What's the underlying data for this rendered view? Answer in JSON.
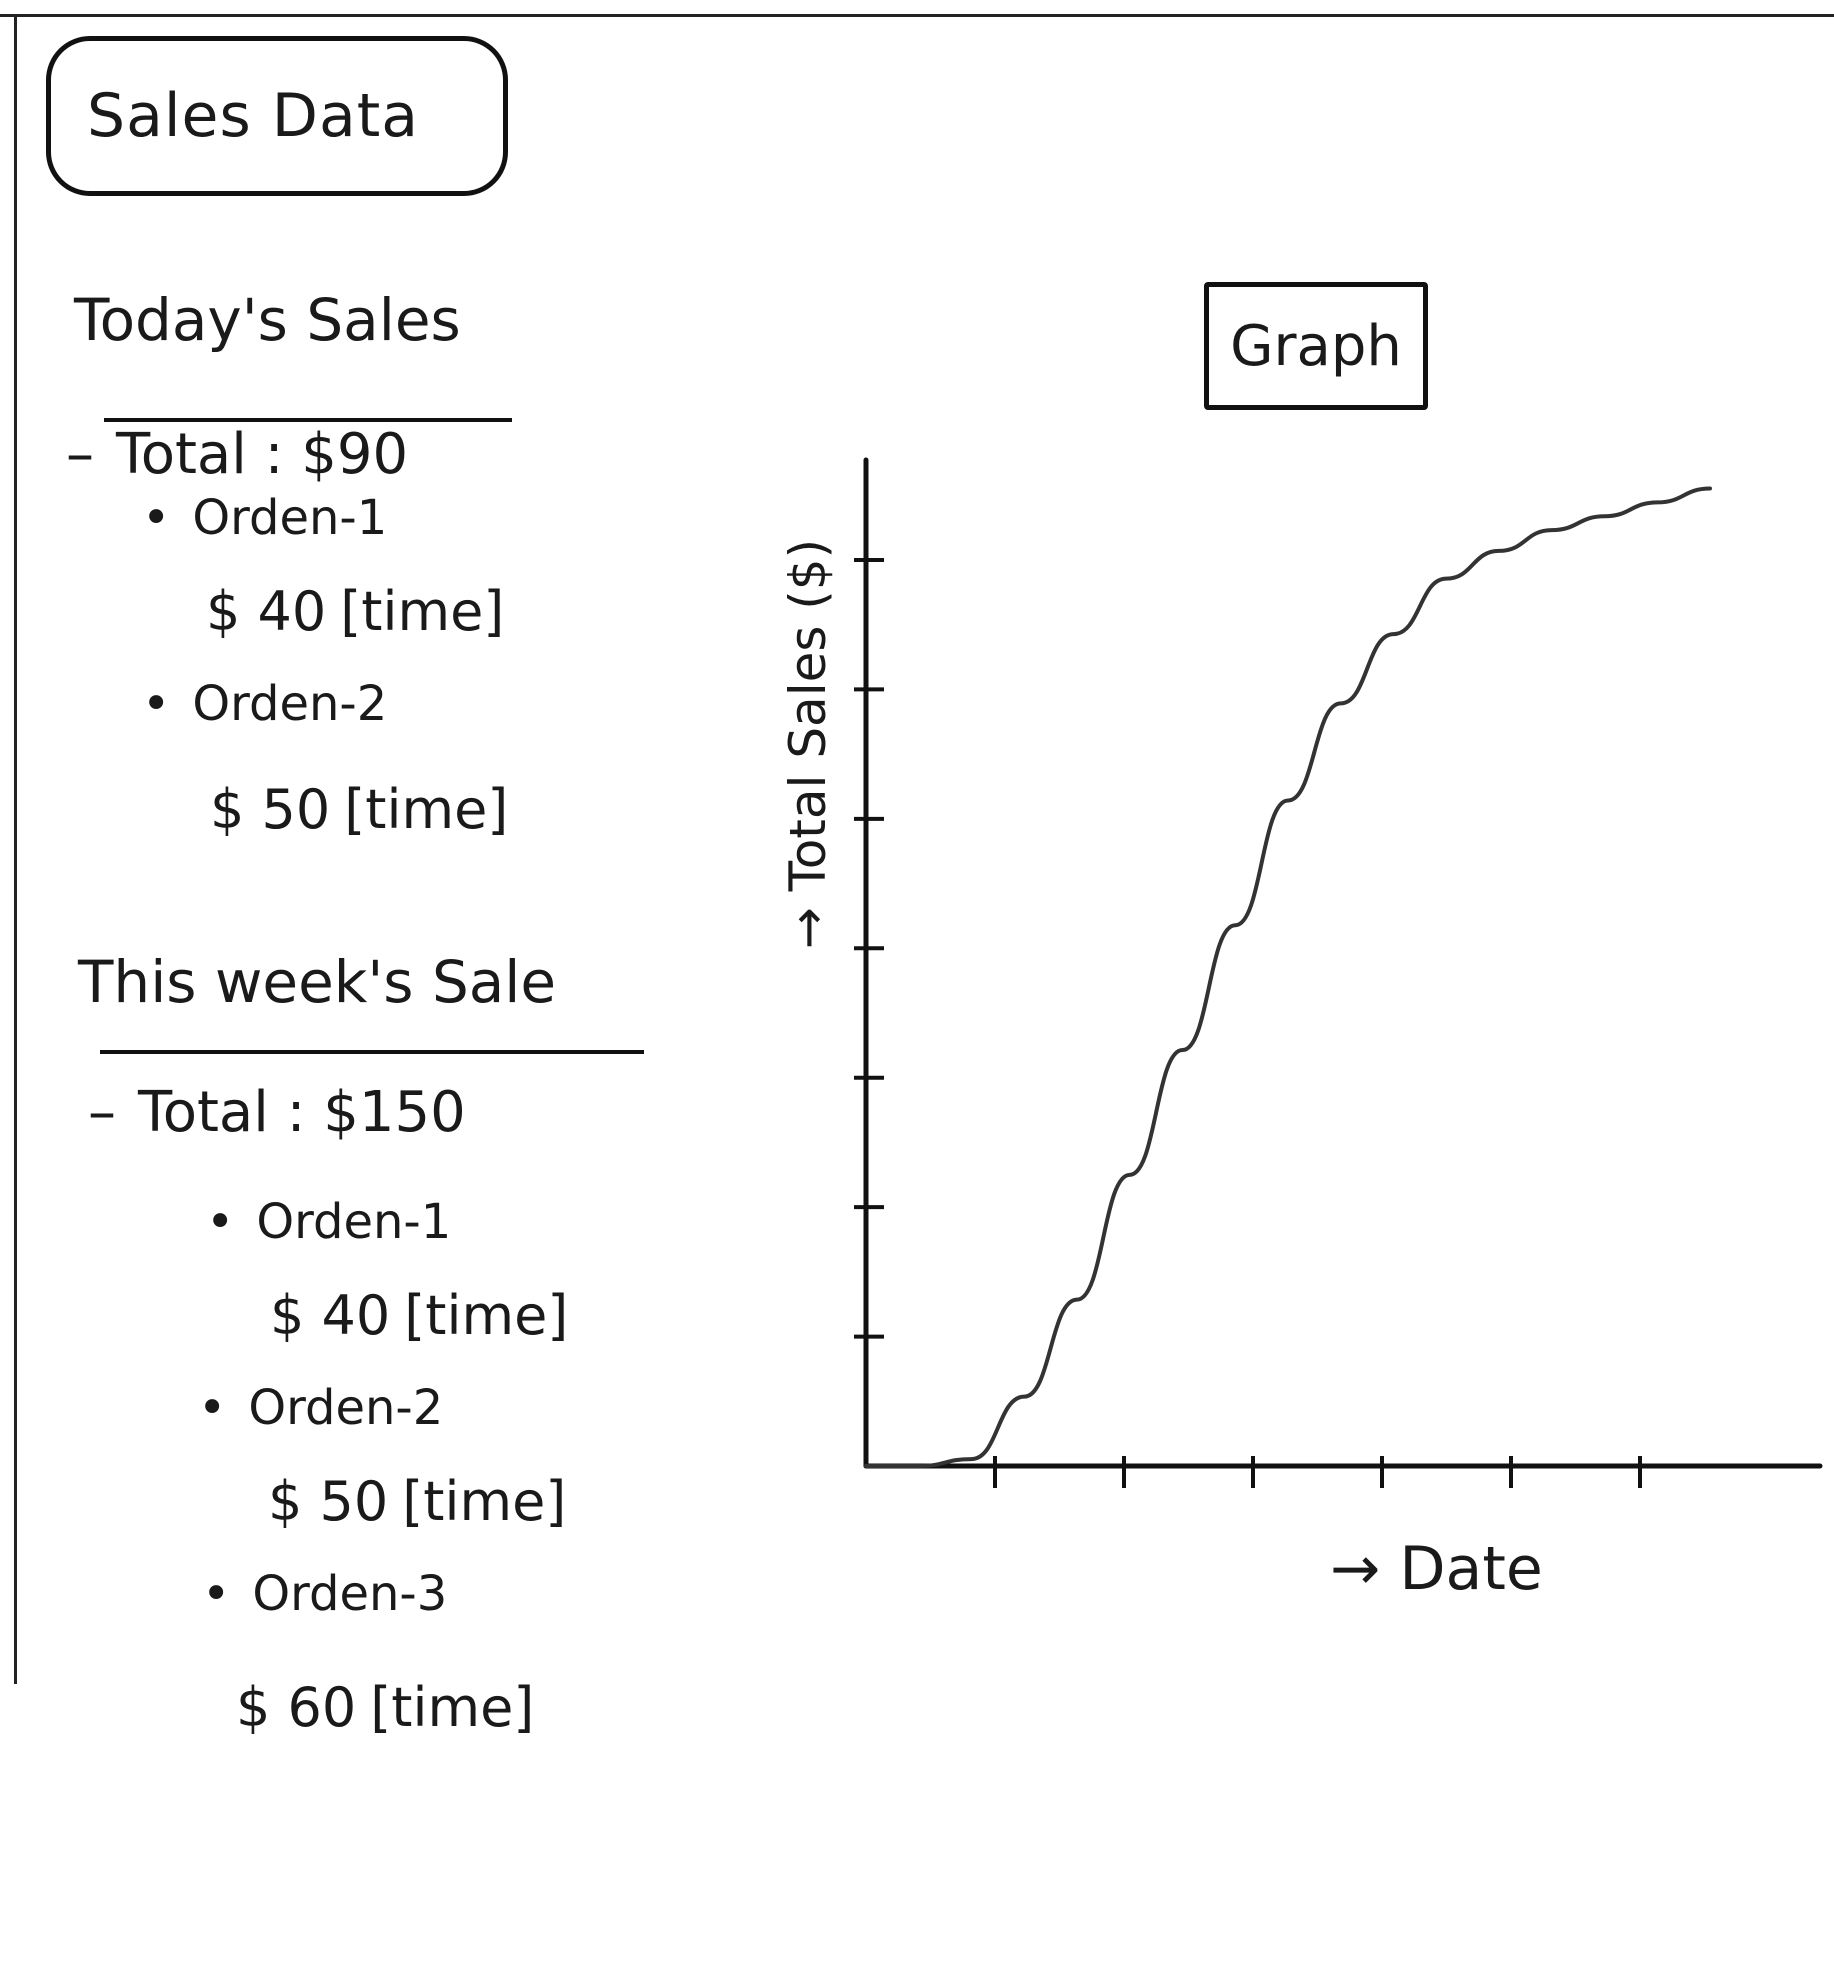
{
  "app_title": "Sales Data",
  "today": {
    "title": "Today's Sales",
    "total": "Total : $90",
    "orders": [
      {
        "label": "Orden-1",
        "amount": "$ 40",
        "time": "[time]"
      },
      {
        "label": "Orden-2",
        "amount": "$ 50",
        "time": "[time]"
      }
    ]
  },
  "week": {
    "title": "This week's Sale",
    "total": "Total : $150",
    "orders": [
      {
        "label": "Orden-1",
        "amount": "$ 40",
        "time": "[time]"
      },
      {
        "label": "Orden-2",
        "amount": "$ 50",
        "time": "[time]"
      },
      {
        "label": "Orden-3",
        "amount": "$ 60",
        "time": "[time]"
      }
    ]
  },
  "graph": {
    "title": "Graph",
    "ylabel": "→ Total Sales ($)",
    "xlabel": "→ Date"
  },
  "chart_data": {
    "type": "line",
    "title": "Graph",
    "xlabel": "→ Date",
    "ylabel": "→ Total Sales ($)",
    "x_tick_count": 6,
    "y_tick_count": 7,
    "series": [
      {
        "x": [
          0,
          0.5,
          1,
          1.5,
          2,
          2.5,
          3,
          3.5,
          4,
          4.5,
          5,
          5.5,
          6,
          6.5,
          7,
          7.5,
          8
        ],
        "y": [
          0,
          0,
          0.05,
          0.5,
          1.2,
          2.1,
          3.0,
          3.9,
          4.8,
          5.5,
          6.0,
          6.4,
          6.6,
          6.75,
          6.85,
          6.95,
          7.05
        ]
      }
    ],
    "xlim": [
      0,
      8
    ],
    "ylim": [
      0,
      7.4
    ],
    "grid": false
  }
}
